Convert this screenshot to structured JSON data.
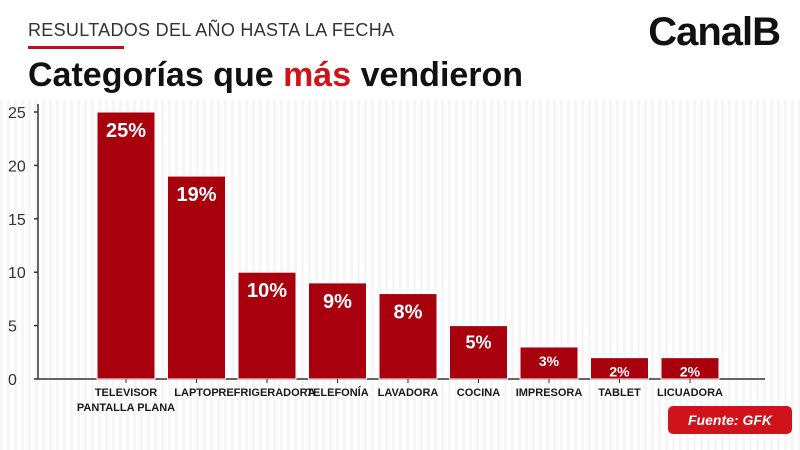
{
  "header": {
    "kicker": "RESULTADOS DEL AÑO HASTA LA FECHA",
    "title_before": "Categorías que ",
    "title_accent": "más",
    "title_after": " vendieron",
    "brand": "CanalB"
  },
  "source": "Fuente: GFK",
  "colors": {
    "bar": "#a8000c",
    "accent": "#d0121b",
    "axis": "#333333"
  },
  "chart_data": {
    "type": "bar",
    "categories": [
      [
        "TELEVISOR",
        "PANTALLA PLANA"
      ],
      [
        "LAPTOP"
      ],
      [
        "REFRIGERADORA"
      ],
      [
        "TELEFONÍA"
      ],
      [
        "LAVADORA"
      ],
      [
        "COCINA"
      ],
      [
        "IMPRESORA"
      ],
      [
        "TABLET"
      ],
      [
        "LICUADORA"
      ]
    ],
    "values": [
      25,
      19,
      10,
      9,
      8,
      5,
      3,
      2,
      2
    ],
    "data_labels": [
      "25%",
      "19%",
      "10%",
      "9%",
      "8%",
      "5%",
      "3%",
      "2%",
      "2%"
    ],
    "ylim": [
      0,
      25
    ],
    "yticks": [
      0,
      5,
      10,
      15,
      20,
      25
    ],
    "grid": false,
    "legend": "none",
    "xlabel": "",
    "ylabel": ""
  }
}
